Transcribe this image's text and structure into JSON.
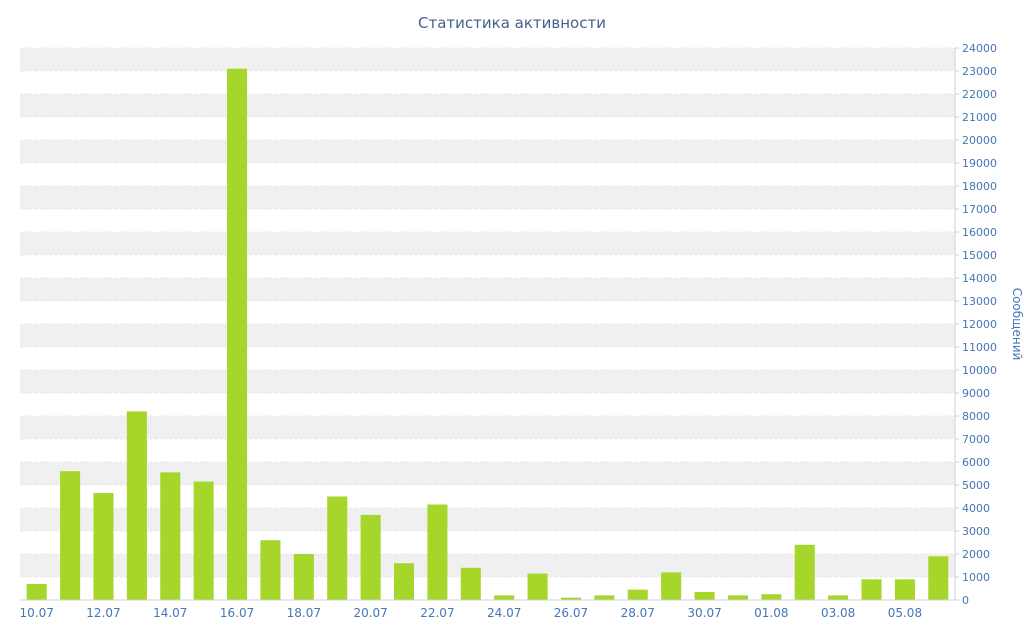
{
  "chart_data": {
    "type": "bar",
    "title": "Статистика активности",
    "xlabel": "",
    "ylabel": "Сообщений",
    "ylim": [
      0,
      24000
    ],
    "y_tick_step": 1000,
    "x_label_every": 2,
    "legend": "none",
    "grid": "striped-horizontal",
    "categories": [
      "10.07",
      "11.07",
      "12.07",
      "13.07",
      "14.07",
      "15.07",
      "16.07",
      "17.07",
      "18.07",
      "19.07",
      "20.07",
      "21.07",
      "22.07",
      "23.07",
      "24.07",
      "25.07",
      "26.07",
      "27.07",
      "28.07",
      "29.07",
      "30.07",
      "31.07",
      "01.08",
      "02.08",
      "03.08",
      "04.08",
      "05.08",
      "06.08"
    ],
    "values": [
      700,
      5600,
      4650,
      8200,
      5550,
      5150,
      23100,
      2600,
      2000,
      4500,
      3700,
      1600,
      4150,
      1400,
      200,
      1150,
      100,
      200,
      450,
      1200,
      350,
      200,
      250,
      2400,
      200,
      900,
      900,
      1900
    ],
    "colors": {
      "bar": "#a6d629",
      "axis_label": "#4576b5",
      "title": "#44618e",
      "stripe": "#f0f0f0",
      "grid_line": "#e4e4e4",
      "axis_line": "#ccd2d9",
      "background": "#ffffff"
    }
  }
}
